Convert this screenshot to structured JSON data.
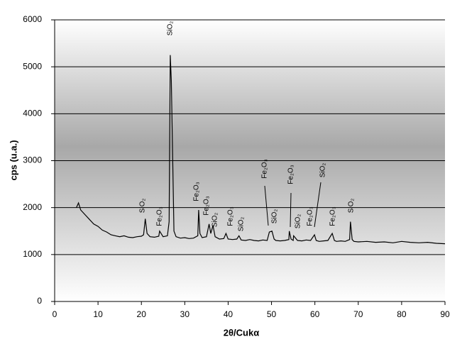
{
  "chart_data": {
    "type": "line",
    "xlabel": "2θ/Cukα",
    "ylabel": "cps (u.a.)",
    "x": [
      5,
      5.5,
      6,
      7,
      8,
      9,
      10,
      11,
      12,
      13,
      14,
      15,
      16,
      17,
      18,
      19,
      20,
      20.5,
      20.9,
      21.3,
      22,
      23,
      24,
      24.2,
      25,
      26,
      26.4,
      26.65,
      26.9,
      27.5,
      28,
      29,
      30,
      31,
      32,
      33,
      33.2,
      33.5,
      34,
      35,
      35.6,
      36,
      36.5,
      37,
      38,
      39,
      39.5,
      40,
      41,
      42,
      42.5,
      43,
      44,
      45,
      46,
      47,
      48,
      49,
      49.5,
      50.1,
      50.6,
      51,
      52,
      53,
      54,
      54.1,
      54.5,
      55,
      55.1,
      56,
      57,
      58,
      59,
      59.9,
      60.3,
      61,
      62,
      63,
      64,
      64.5,
      65,
      66,
      67,
      68,
      68.2,
      68.6,
      69,
      70,
      72,
      74,
      76,
      78,
      80,
      82,
      84,
      86,
      88,
      90
    ],
    "series": [
      {
        "color": "#000000",
        "values": [
          2000,
          2100,
          1950,
          1850,
          1750,
          1650,
          1600,
          1520,
          1480,
          1420,
          1400,
          1380,
          1400,
          1370,
          1360,
          1380,
          1390,
          1420,
          1760,
          1450,
          1380,
          1370,
          1390,
          1500,
          1380,
          1400,
          1700,
          5250,
          4700,
          1500,
          1380,
          1350,
          1360,
          1340,
          1350,
          1400,
          1950,
          1450,
          1360,
          1380,
          1650,
          1450,
          1620,
          1380,
          1330,
          1340,
          1450,
          1330,
          1320,
          1330,
          1400,
          1310,
          1300,
          1320,
          1300,
          1290,
          1310,
          1300,
          1480,
          1500,
          1330,
          1300,
          1290,
          1300,
          1320,
          1500,
          1330,
          1300,
          1400,
          1300,
          1290,
          1310,
          1300,
          1420,
          1300,
          1280,
          1290,
          1300,
          1450,
          1300,
          1280,
          1290,
          1280,
          1320,
          1700,
          1320,
          1280,
          1270,
          1280,
          1260,
          1270,
          1250,
          1280,
          1260,
          1250,
          1260,
          1240,
          1230
        ]
      }
    ],
    "xlim": [
      0,
      90
    ],
    "xticks": [
      0,
      10,
      20,
      30,
      40,
      50,
      60,
      70,
      80,
      90
    ],
    "ylim": [
      0,
      6000
    ],
    "yticks": [
      0,
      1000,
      2000,
      3000,
      4000,
      5000,
      6000
    ],
    "grid": true,
    "annotations": [
      "SiO₂",
      "SiO₂",
      "Fe₂O₃",
      "Fe₂O₃",
      "Fe₂O₃",
      "SiO₂",
      "Fe₂O₃",
      "SiO₂",
      "Fe₂O₃",
      "SiO₂",
      "Fe₂O₃",
      "SiO₂",
      "Fe₂O₃",
      "SiO₂",
      "Fe₂O₃",
      "SiO₂"
    ]
  }
}
